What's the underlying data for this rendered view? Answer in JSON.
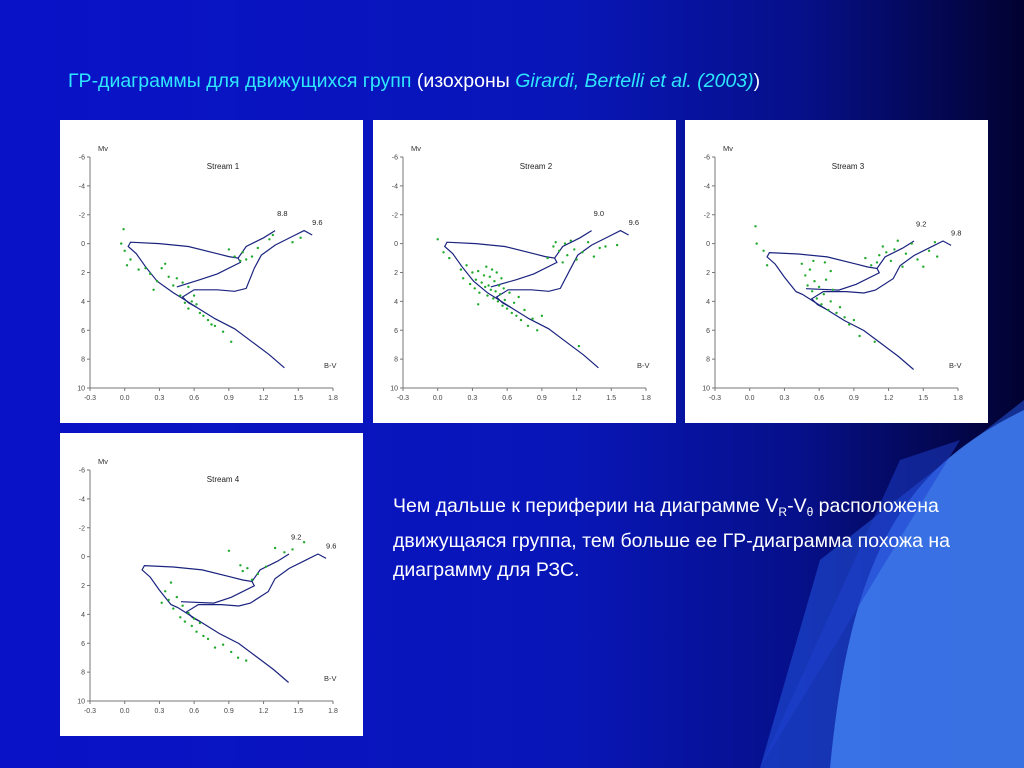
{
  "title": {
    "part1": "ГР-диаграммы для движущихся групп",
    "part2": " (изохроны ",
    "part3": "Girardi, Bertelli et al. (2003)",
    "part4": ")"
  },
  "body": {
    "t1": "Чем дальше к периферии на диаграмме V",
    "sub1": "R",
    "t2": "-V",
    "sub2": "θ",
    "t3": " расположена движущаяся группа, тем больше ее ГР-диаграмма похожа на диаграмму для РЗС."
  },
  "colors": {
    "isochrone": "#1a237e",
    "points": "#1faa2c",
    "title_accent": "#2ee6ff"
  },
  "chart_data": [
    {
      "type": "scatter",
      "title": "Stream 1",
      "xlabel": "B-V",
      "ylabel": "Mv",
      "xlim": [
        -0.3,
        1.8
      ],
      "ylim": [
        10,
        -6
      ],
      "xticks": [
        "-0.3",
        "0.0",
        "0.3",
        "0.6",
        "0.9",
        "1.2",
        "1.5",
        "1.8"
      ],
      "yticks": [
        "-6",
        "-4",
        "-2",
        "0",
        "2",
        "4",
        "6",
        "8",
        "10"
      ],
      "isochrone_labels": [
        "8.8",
        "9.6"
      ],
      "points": [
        [
          -0.03,
          0.0
        ],
        [
          0.0,
          0.5
        ],
        [
          0.02,
          1.5
        ],
        [
          0.05,
          1.1
        ],
        [
          0.12,
          1.8
        ],
        [
          0.18,
          1.7
        ],
        [
          0.22,
          2.1
        ],
        [
          0.25,
          3.2
        ],
        [
          0.28,
          2.6
        ],
        [
          0.32,
          1.7
        ],
        [
          0.35,
          1.4
        ],
        [
          0.38,
          2.3
        ],
        [
          0.42,
          2.9
        ],
        [
          0.45,
          2.4
        ],
        [
          0.48,
          3.6
        ],
        [
          0.5,
          2.7
        ],
        [
          0.52,
          4.1
        ],
        [
          0.55,
          3.0
        ],
        [
          0.55,
          4.5
        ],
        [
          0.58,
          4.0
        ],
        [
          0.6,
          3.6
        ],
        [
          0.62,
          4.2
        ],
        [
          0.65,
          4.8
        ],
        [
          0.68,
          5.0
        ],
        [
          0.72,
          5.3
        ],
        [
          0.75,
          5.6
        ],
        [
          0.78,
          5.7
        ],
        [
          0.85,
          6.1
        ],
        [
          0.9,
          0.4
        ],
        [
          0.95,
          0.9
        ],
        [
          1.0,
          1.2
        ],
        [
          1.02,
          0.6
        ],
        [
          1.05,
          1.1
        ],
        [
          1.1,
          0.9
        ],
        [
          1.15,
          0.3
        ],
        [
          1.25,
          -0.3
        ],
        [
          1.28,
          -0.6
        ],
        [
          1.45,
          -0.1
        ],
        [
          1.52,
          -0.4
        ],
        [
          0.92,
          6.8
        ],
        [
          -0.01,
          -1.0
        ]
      ]
    },
    {
      "type": "scatter",
      "title": "Stream 2",
      "xlabel": "B-V",
      "ylabel": "Mv",
      "xlim": [
        -0.3,
        1.8
      ],
      "ylim": [
        10,
        -6
      ],
      "xticks": [
        "-0.3",
        "0.0",
        "0.3",
        "0.6",
        "0.9",
        "1.2",
        "1.5",
        "1.8"
      ],
      "yticks": [
        "-6",
        "-4",
        "-2",
        "0",
        "2",
        "4",
        "6",
        "8",
        "10"
      ],
      "isochrone_labels": [
        "9.0",
        "9.6"
      ],
      "points": [
        [
          0.0,
          -0.3
        ],
        [
          0.05,
          0.6
        ],
        [
          0.1,
          1.0
        ],
        [
          0.2,
          1.8
        ],
        [
          0.22,
          2.4
        ],
        [
          0.25,
          1.5
        ],
        [
          0.28,
          2.8
        ],
        [
          0.3,
          2.0
        ],
        [
          0.32,
          3.1
        ],
        [
          0.33,
          2.5
        ],
        [
          0.35,
          1.9
        ],
        [
          0.36,
          3.4
        ],
        [
          0.38,
          2.7
        ],
        [
          0.4,
          2.2
        ],
        [
          0.41,
          3.0
        ],
        [
          0.42,
          1.6
        ],
        [
          0.43,
          3.6
        ],
        [
          0.44,
          2.9
        ],
        [
          0.45,
          2.3
        ],
        [
          0.46,
          3.2
        ],
        [
          0.47,
          1.8
        ],
        [
          0.48,
          3.8
        ],
        [
          0.49,
          2.6
        ],
        [
          0.5,
          3.3
        ],
        [
          0.51,
          2.0
        ],
        [
          0.52,
          4.0
        ],
        [
          0.53,
          2.9
        ],
        [
          0.54,
          3.5
        ],
        [
          0.55,
          2.4
        ],
        [
          0.56,
          4.3
        ],
        [
          0.57,
          3.1
        ],
        [
          0.58,
          3.9
        ],
        [
          0.6,
          4.5
        ],
        [
          0.62,
          3.4
        ],
        [
          0.64,
          4.8
        ],
        [
          0.66,
          4.1
        ],
        [
          0.68,
          5.0
        ],
        [
          0.7,
          3.7
        ],
        [
          0.72,
          5.3
        ],
        [
          0.75,
          4.6
        ],
        [
          0.78,
          5.7
        ],
        [
          0.82,
          5.2
        ],
        [
          0.86,
          6.0
        ],
        [
          0.9,
          5.0
        ],
        [
          0.95,
          1.0
        ],
        [
          1.0,
          0.2
        ],
        [
          1.02,
          -0.1
        ],
        [
          1.05,
          0.5
        ],
        [
          1.08,
          1.3
        ],
        [
          1.1,
          0.0
        ],
        [
          1.12,
          0.8
        ],
        [
          1.15,
          -0.2
        ],
        [
          1.18,
          0.4
        ],
        [
          1.2,
          1.1
        ],
        [
          1.25,
          0.6
        ],
        [
          1.3,
          -0.1
        ],
        [
          1.35,
          0.9
        ],
        [
          1.4,
          0.3
        ],
        [
          1.45,
          0.2
        ],
        [
          1.55,
          0.1
        ],
        [
          1.22,
          7.1
        ],
        [
          0.35,
          4.2
        ]
      ]
    },
    {
      "type": "scatter",
      "title": "Stream 3",
      "xlabel": "B-V",
      "ylabel": "Mv",
      "xlim": [
        -0.3,
        1.8
      ],
      "ylim": [
        10,
        -6
      ],
      "xticks": [
        "-0.3",
        "0.0",
        "0.3",
        "0.6",
        "0.9",
        "1.2",
        "1.5",
        "1.8"
      ],
      "yticks": [
        "-6",
        "-4",
        "-2",
        "0",
        "2",
        "4",
        "6",
        "8",
        "10"
      ],
      "isochrone_labels": [
        "9.2",
        "9.8"
      ],
      "points": [
        [
          0.05,
          -1.2
        ],
        [
          0.06,
          0.0
        ],
        [
          0.12,
          0.5
        ],
        [
          0.15,
          1.5
        ],
        [
          0.45,
          1.4
        ],
        [
          0.48,
          2.2
        ],
        [
          0.5,
          2.9
        ],
        [
          0.52,
          1.8
        ],
        [
          0.54,
          3.3
        ],
        [
          0.56,
          2.6
        ],
        [
          0.58,
          3.8
        ],
        [
          0.6,
          3.0
        ],
        [
          0.62,
          4.2
        ],
        [
          0.64,
          3.5
        ],
        [
          0.66,
          2.5
        ],
        [
          0.68,
          4.6
        ],
        [
          0.7,
          4.0
        ],
        [
          0.72,
          3.2
        ],
        [
          0.75,
          4.8
        ],
        [
          0.78,
          4.4
        ],
        [
          0.82,
          5.1
        ],
        [
          0.86,
          5.6
        ],
        [
          0.9,
          5.3
        ],
        [
          0.95,
          6.4
        ],
        [
          1.08,
          6.8
        ],
        [
          1.0,
          1.0
        ],
        [
          1.05,
          1.5
        ],
        [
          1.1,
          1.3
        ],
        [
          1.12,
          0.8
        ],
        [
          1.15,
          0.2
        ],
        [
          1.18,
          0.6
        ],
        [
          1.22,
          1.2
        ],
        [
          1.25,
          0.4
        ],
        [
          1.28,
          -0.2
        ],
        [
          1.32,
          1.6
        ],
        [
          1.35,
          0.7
        ],
        [
          1.4,
          0.0
        ],
        [
          1.45,
          1.1
        ],
        [
          1.5,
          1.6
        ],
        [
          1.55,
          0.5
        ],
        [
          1.6,
          -0.1
        ],
        [
          1.62,
          0.9
        ],
        [
          0.65,
          1.3
        ],
        [
          0.7,
          1.9
        ],
        [
          0.55,
          1.2
        ]
      ]
    },
    {
      "type": "scatter",
      "title": "Stream 4",
      "xlabel": "B-V",
      "ylabel": "Mv",
      "xlim": [
        -0.3,
        1.8
      ],
      "ylim": [
        10,
        -6
      ],
      "xticks": [
        "-0.3",
        "0.0",
        "0.3",
        "0.6",
        "0.9",
        "1.2",
        "1.5",
        "1.8"
      ],
      "yticks": [
        "-6",
        "-4",
        "-2",
        "0",
        "2",
        "4",
        "6",
        "8",
        "10"
      ],
      "isochrone_labels": [
        "9.2",
        "9.6"
      ],
      "points": [
        [
          0.35,
          2.4
        ],
        [
          0.38,
          3.0
        ],
        [
          0.42,
          3.6
        ],
        [
          0.45,
          2.8
        ],
        [
          0.48,
          4.2
        ],
        [
          0.5,
          3.4
        ],
        [
          0.52,
          4.5
        ],
        [
          0.55,
          3.9
        ],
        [
          0.58,
          4.8
        ],
        [
          0.6,
          4.3
        ],
        [
          0.62,
          5.2
        ],
        [
          0.65,
          4.6
        ],
        [
          0.68,
          5.5
        ],
        [
          0.72,
          5.7
        ],
        [
          0.78,
          6.3
        ],
        [
          0.85,
          6.1
        ],
        [
          0.92,
          6.6
        ],
        [
          0.98,
          7.0
        ],
        [
          1.05,
          7.2
        ],
        [
          0.9,
          -0.4
        ],
        [
          1.0,
          0.6
        ],
        [
          1.02,
          1.0
        ],
        [
          1.06,
          0.8
        ],
        [
          1.1,
          1.6
        ],
        [
          1.15,
          1.2
        ],
        [
          1.22,
          0.7
        ],
        [
          1.3,
          -0.6
        ],
        [
          1.38,
          -0.3
        ],
        [
          1.45,
          -0.5
        ],
        [
          1.55,
          -1.0
        ],
        [
          0.32,
          3.2
        ],
        [
          0.4,
          1.8
        ]
      ]
    }
  ]
}
